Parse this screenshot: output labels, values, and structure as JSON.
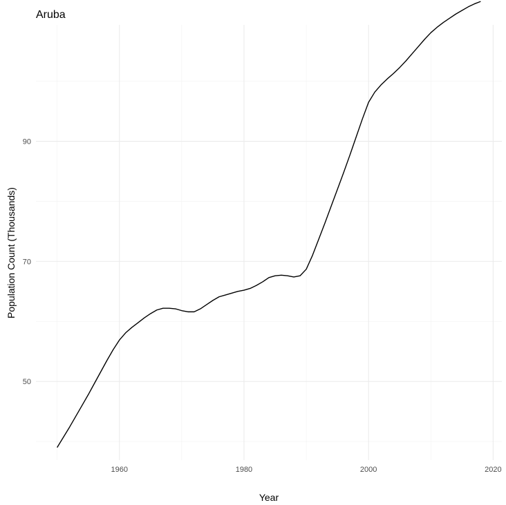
{
  "chart_data": {
    "type": "line",
    "title": "Aruba",
    "xlabel": "Year",
    "ylabel": "Population Count (Thousands)",
    "xlim": [
      1946.6,
      2021.4
    ],
    "ylim": [
      36.9,
      109.4
    ],
    "x_major_ticks": [
      1960,
      1980,
      2000,
      2020
    ],
    "x_minor_ticks": [
      1950,
      1970,
      1990,
      2010
    ],
    "y_major_ticks": [
      50,
      70,
      90
    ],
    "y_minor_ticks": [
      40,
      60,
      80,
      100
    ],
    "x_tick_labels": [
      "1960",
      "1980",
      "2000",
      "2020"
    ],
    "y_tick_labels": [
      "50",
      "70",
      "90"
    ],
    "grid": true,
    "legend": "none",
    "line_color": "#000000",
    "x": [
      1950,
      1951,
      1952,
      1953,
      1954,
      1955,
      1956,
      1957,
      1958,
      1959,
      1960,
      1961,
      1962,
      1963,
      1964,
      1965,
      1966,
      1967,
      1968,
      1969,
      1970,
      1971,
      1972,
      1973,
      1974,
      1975,
      1976,
      1977,
      1978,
      1979,
      1980,
      1981,
      1982,
      1983,
      1984,
      1985,
      1986,
      1987,
      1988,
      1989,
      1990,
      1991,
      1992,
      1993,
      1994,
      1995,
      1996,
      1997,
      1998,
      1999,
      2000,
      2001,
      2002,
      2003,
      2004,
      2005,
      2006,
      2007,
      2008,
      2009,
      2010,
      2011,
      2012,
      2013,
      2014,
      2015,
      2016,
      2017,
      2018
    ],
    "y": [
      39.0,
      40.7,
      42.4,
      44.2,
      46.0,
      47.8,
      49.7,
      51.6,
      53.5,
      55.3,
      56.9,
      58.1,
      59.0,
      59.8,
      60.6,
      61.3,
      61.9,
      62.2,
      62.2,
      62.1,
      61.8,
      61.6,
      61.6,
      62.1,
      62.8,
      63.5,
      64.1,
      64.4,
      64.7,
      65.0,
      65.2,
      65.5,
      66.0,
      66.6,
      67.3,
      67.6,
      67.7,
      67.6,
      67.4,
      67.6,
      68.7,
      71.0,
      73.7,
      76.4,
      79.2,
      82.0,
      84.8,
      87.7,
      90.7,
      93.7,
      96.5,
      98.2,
      99.4,
      100.4,
      101.3,
      102.3,
      103.4,
      104.6,
      105.8,
      107.0,
      108.1,
      109.0,
      109.8,
      110.5,
      111.2,
      111.8,
      112.4,
      112.9,
      113.3
    ]
  }
}
